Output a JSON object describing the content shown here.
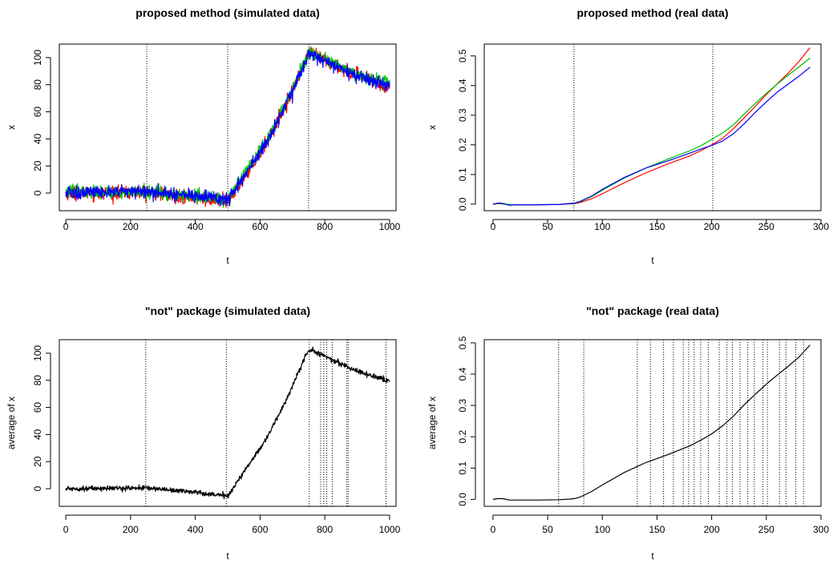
{
  "chart_data": [
    {
      "type": "line",
      "title": "proposed method (simulated data)",
      "xlabel": "t",
      "ylabel": "x",
      "xlim": [
        -20,
        1020
      ],
      "ylim": [
        -13,
        110
      ],
      "xticks": [
        0,
        200,
        400,
        600,
        800,
        1000
      ],
      "yticks": [
        0,
        20,
        40,
        60,
        80,
        100
      ],
      "vlines": [
        250,
        500,
        750
      ],
      "noisy": true,
      "series": [
        {
          "color": "#ff0000",
          "noise": 2.4,
          "x": [
            0,
            250,
            400,
            500,
            560,
            620,
            680,
            750,
            800,
            850,
            900,
            950,
            1000
          ],
          "y": [
            0,
            0.3,
            -3.5,
            -6.5,
            15,
            37,
            65,
            103,
            98,
            92,
            87,
            82,
            78
          ]
        },
        {
          "color": "#00c000",
          "noise": 2.4,
          "x": [
            0,
            250,
            400,
            500,
            560,
            620,
            680,
            750,
            800,
            850,
            900,
            950,
            1000
          ],
          "y": [
            1,
            0.8,
            -2.5,
            -5,
            17,
            38,
            66,
            104,
            99,
            93,
            88,
            84,
            81
          ]
        },
        {
          "color": "#0000ff",
          "noise": 2.4,
          "x": [
            0,
            250,
            400,
            500,
            560,
            620,
            680,
            750,
            800,
            850,
            900,
            950,
            1000
          ],
          "y": [
            0,
            1.5,
            -2,
            -5,
            16,
            37,
            65,
            103,
            98,
            92,
            87,
            83,
            79
          ]
        }
      ]
    },
    {
      "type": "line",
      "title": "proposed method (real data)",
      "xlabel": "t",
      "ylabel": "x",
      "xlim": [
        -8,
        300
      ],
      "ylim": [
        -0.022,
        0.54
      ],
      "xticks": [
        0,
        50,
        100,
        150,
        200,
        250,
        300
      ],
      "yticks": [
        0.0,
        0.1,
        0.2,
        0.3,
        0.4,
        0.5
      ],
      "ytick_labels": [
        "0.0",
        "0.1",
        "0.2",
        "0.3",
        "0.4",
        "0.5"
      ],
      "vlines": [
        74,
        201
      ],
      "noisy": false,
      "series": [
        {
          "color": "#ff0000",
          "x": [
            0,
            5,
            10,
            20,
            40,
            60,
            70,
            75,
            80,
            90,
            100,
            120,
            140,
            160,
            180,
            190,
            200,
            210,
            220,
            230,
            240,
            250,
            260,
            270,
            280,
            290
          ],
          "y": [
            0,
            0.002,
            0,
            -0.002,
            -0.002,
            -0.001,
            0.001,
            0.002,
            0.006,
            0.018,
            0.035,
            0.072,
            0.106,
            0.136,
            0.163,
            0.18,
            0.2,
            0.222,
            0.255,
            0.292,
            0.33,
            0.37,
            0.406,
            0.442,
            0.482,
            0.528
          ]
        },
        {
          "color": "#00c000",
          "x": [
            0,
            5,
            10,
            20,
            40,
            60,
            70,
            75,
            80,
            90,
            100,
            120,
            140,
            160,
            180,
            190,
            200,
            210,
            220,
            230,
            240,
            250,
            260,
            270,
            280,
            290
          ],
          "y": [
            0,
            0.003,
            0,
            -0.002,
            -0.002,
            -0.001,
            0.002,
            0.003,
            0.009,
            0.025,
            0.047,
            0.088,
            0.122,
            0.152,
            0.18,
            0.197,
            0.218,
            0.24,
            0.268,
            0.305,
            0.34,
            0.374,
            0.405,
            0.435,
            0.463,
            0.493
          ]
        },
        {
          "color": "#0000ff",
          "x": [
            0,
            5,
            10,
            15,
            20,
            40,
            60,
            70,
            75,
            80,
            90,
            100,
            120,
            140,
            160,
            180,
            190,
            200,
            210,
            220,
            230,
            240,
            250,
            260,
            270,
            280,
            290
          ],
          "y": [
            0,
            0.004,
            0.002,
            -0.004,
            -0.002,
            -0.002,
            -0.001,
            0.002,
            0.004,
            0.01,
            0.027,
            0.05,
            0.09,
            0.122,
            0.146,
            0.172,
            0.186,
            0.198,
            0.213,
            0.238,
            0.272,
            0.31,
            0.345,
            0.378,
            0.405,
            0.432,
            0.462
          ]
        }
      ]
    },
    {
      "type": "line",
      "title": "\"not\" package (simulated data)",
      "xlabel": "t",
      "ylabel": "average of x",
      "xlim": [
        -20,
        1020
      ],
      "ylim": [
        -13,
        110
      ],
      "xticks": [
        0,
        200,
        400,
        600,
        800,
        1000
      ],
      "yticks": [
        0,
        20,
        40,
        60,
        80,
        100
      ],
      "vlines": [
        247,
        496,
        752,
        787,
        797,
        806,
        823,
        868,
        872,
        989
      ],
      "noisy": true,
      "series": [
        {
          "color": "#000000",
          "noise": 0.9,
          "x": [
            0,
            250,
            400,
            500,
            560,
            620,
            680,
            750,
            800,
            850,
            900,
            950,
            1000
          ],
          "y": [
            0,
            0.6,
            -2.5,
            -5.5,
            16,
            37,
            65,
            103,
            98,
            92,
            87,
            83,
            79
          ]
        }
      ]
    },
    {
      "type": "line",
      "title": "\"not\" package (real data)",
      "xlabel": "t",
      "ylabel": "average of x",
      "xlim": [
        -8,
        300
      ],
      "ylim": [
        -0.022,
        0.51
      ],
      "xticks": [
        0,
        50,
        100,
        150,
        200,
        250,
        300
      ],
      "yticks": [
        0.0,
        0.1,
        0.2,
        0.3,
        0.4,
        0.5
      ],
      "ytick_labels": [
        "0.0",
        "0.1",
        "0.2",
        "0.3",
        "0.4",
        "0.5"
      ],
      "vlines": [
        60,
        83,
        132,
        144,
        156,
        165,
        174,
        179,
        184,
        190,
        197,
        207,
        214,
        219,
        226,
        233,
        239,
        247,
        251,
        262,
        268,
        277,
        284
      ],
      "noisy": false,
      "series": [
        {
          "color": "#000000",
          "x": [
            0,
            5,
            10,
            15,
            20,
            40,
            60,
            70,
            75,
            80,
            90,
            100,
            120,
            140,
            160,
            180,
            190,
            200,
            210,
            220,
            230,
            240,
            250,
            260,
            270,
            280,
            290
          ],
          "y": [
            0,
            0.003,
            0.002,
            -0.002,
            -0.002,
            -0.002,
            -0.001,
            0.001,
            0.003,
            0.008,
            0.025,
            0.046,
            0.086,
            0.118,
            0.143,
            0.171,
            0.189,
            0.209,
            0.235,
            0.266,
            0.303,
            0.336,
            0.368,
            0.397,
            0.425,
            0.455,
            0.493
          ]
        }
      ]
    }
  ]
}
